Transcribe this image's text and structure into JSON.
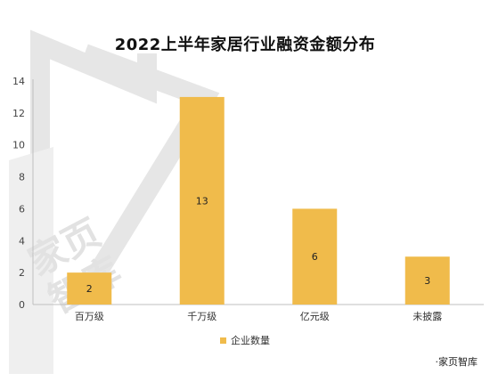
{
  "chart_data": {
    "type": "bar",
    "title": "2022上半年家居行业融资金额分布",
    "categories": [
      "百万级",
      "千万级",
      "亿元级",
      "未披露"
    ],
    "series": [
      {
        "name": "企业数量",
        "values": [
          2,
          13,
          6,
          3
        ]
      }
    ],
    "ylim": [
      0,
      14
    ],
    "yticks": [
      0,
      2,
      4,
      6,
      8,
      10,
      12,
      14
    ],
    "data_labels": true,
    "legend_position": "bottom",
    "grid": false,
    "bar_color": "#f0bb4b"
  },
  "watermark_text": "家页智库",
  "source_label": "·家页智库"
}
